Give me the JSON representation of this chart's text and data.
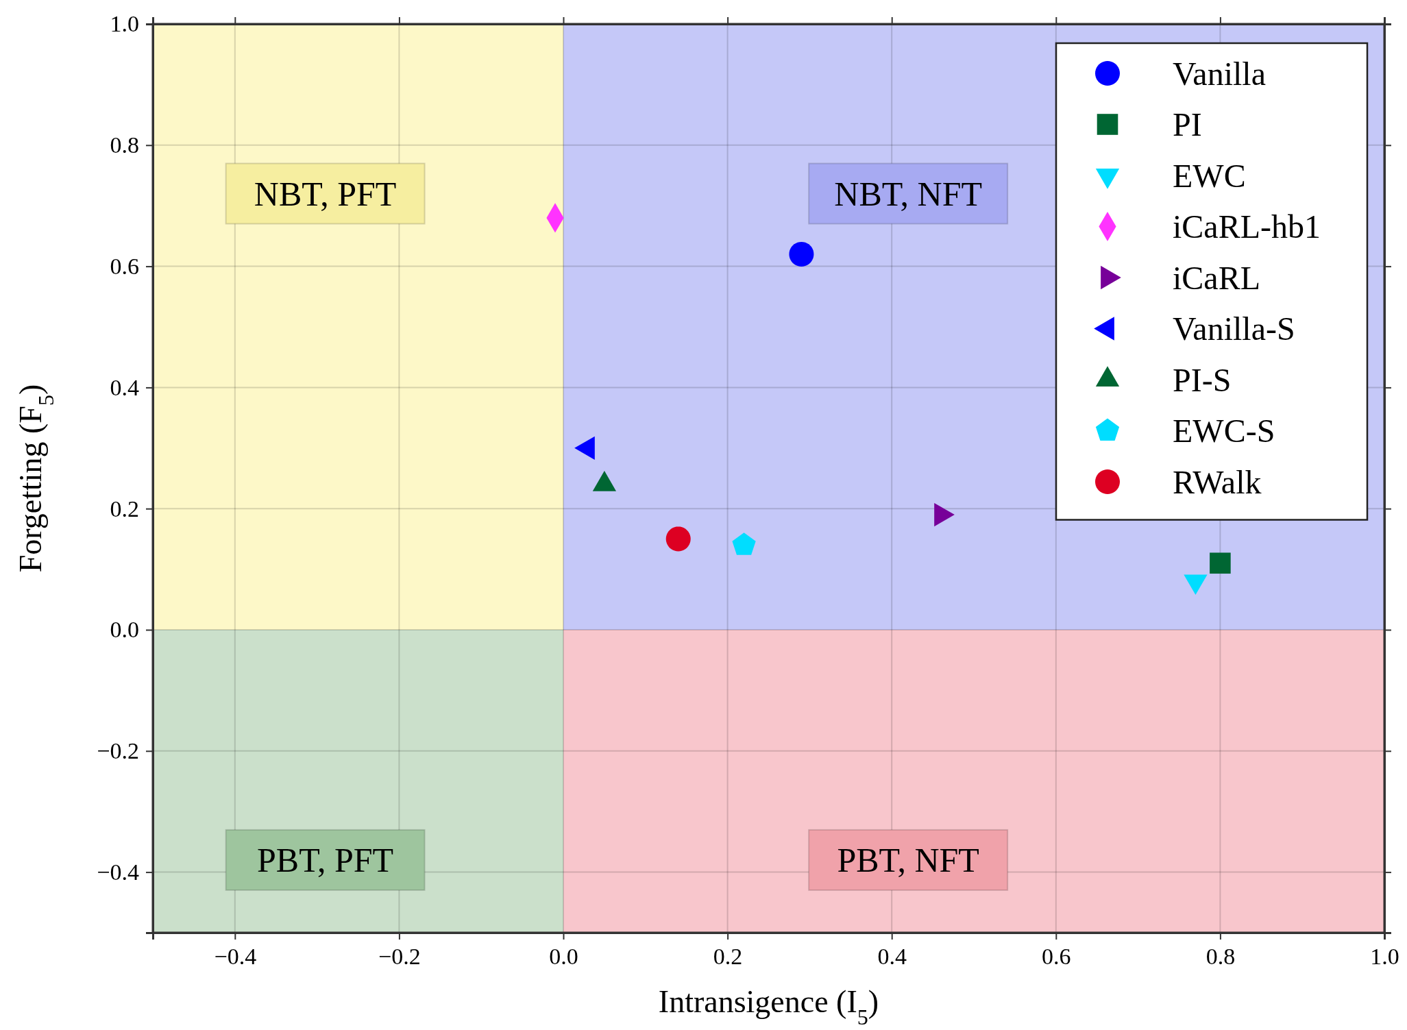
{
  "chart_data": {
    "type": "scatter",
    "xlabel": "Intransigence (I$_{5}$)",
    "ylabel": "Forgetting (F$_{5}$)",
    "xlim": [
      -0.5,
      1.0
    ],
    "ylim": [
      -0.5,
      1.0
    ],
    "xticks": [
      {
        "value": -0.4,
        "label": "−0.4"
      },
      {
        "value": -0.2,
        "label": "−0.2"
      },
      {
        "value": 0,
        "label": "0.0"
      },
      0.2,
      0.4,
      0.6,
      0.8,
      {
        "value": 1,
        "label": "1.0"
      }
    ],
    "yticks": [
      {
        "value": -0.4,
        "label": "−0.4"
      },
      {
        "value": -0.2,
        "label": "−0.2"
      },
      {
        "value": 0,
        "label": "0.0"
      },
      0.2,
      0.4,
      0.6,
      0.8,
      {
        "value": 1,
        "label": "1.0"
      }
    ],
    "grid": true,
    "legend": "top right",
    "annotations": [
      "NBT, PFT",
      "NBT, NFT",
      "PBT, PFT",
      "PBT, NFT"
    ],
    "series": [
      {
        "name": "Vanilla",
        "color": "#0000ff",
        "marker": "circle",
        "x": [
          0.29
        ],
        "values": [
          0.62
        ]
      },
      {
        "name": "PI",
        "color": "#006633",
        "marker": "square",
        "x": [
          0.8
        ],
        "values": [
          0.11
        ]
      },
      {
        "name": "EWC",
        "color": "#00ddff",
        "marker": "triangle-down",
        "x": [
          0.77
        ],
        "values": [
          0.08
        ]
      },
      {
        "name": "iCaRL-hb1",
        "color": "#ff33ff",
        "marker": "diamond",
        "x": [
          -0.01
        ],
        "values": [
          0.68
        ]
      },
      {
        "name": "iCaRL",
        "color": "#770099",
        "marker": "triangle-right",
        "x": [
          0.46
        ],
        "values": [
          0.19
        ]
      },
      {
        "name": "Vanilla-S",
        "color": "#0000ff",
        "marker": "triangle-left",
        "x": [
          0.03
        ],
        "values": [
          0.3
        ]
      },
      {
        "name": "PI-S",
        "color": "#006633",
        "marker": "triangle",
        "x": [
          0.05
        ],
        "values": [
          0.24
        ]
      },
      {
        "name": "EWC-S",
        "color": "#00ddff",
        "x": [
          0.22
        ],
        "values": [
          0.14
        ]
      },
      {
        "name": "RWalk",
        "color": "#dd0022",
        "marker": "circle",
        "x": [
          0.14
        ],
        "values": [
          0.15
        ]
      }
    ]
  }
}
